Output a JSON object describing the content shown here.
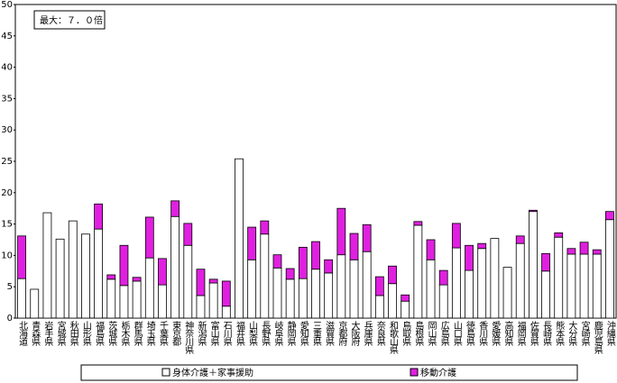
{
  "chart_data": {
    "type": "stacked-bar",
    "annotation": "最大：７．０倍",
    "categories": [
      "北海道",
      "青森県",
      "岩手県",
      "宮城県",
      "秋田県",
      "山形県",
      "福島県",
      "茨城県",
      "栃木県",
      "群馬県",
      "埼玉県",
      "千葉県",
      "東京都",
      "神奈川県",
      "新潟県",
      "富山県",
      "石川県",
      "福井県",
      "山梨県",
      "長野県",
      "岐阜県",
      "静岡県",
      "愛知県",
      "三重県",
      "滋賀県",
      "京都府",
      "大阪府",
      "兵庫県",
      "奈良県",
      "和歌山県",
      "鳥取県",
      "島根県",
      "岡山県",
      "広島県",
      "山口県",
      "徳島県",
      "香川県",
      "愛媛県",
      "高知県",
      "福岡県",
      "佐賀県",
      "長崎県",
      "熊本県",
      "大分県",
      "宮崎県",
      "鹿児島県",
      "沖縄県"
    ],
    "series": [
      {
        "name": "身体介護＋家事援助",
        "color": "#ffffff",
        "values": [
          6.3,
          4.6,
          16.8,
          12.6,
          15.5,
          13.4,
          14.2,
          6.2,
          5.2,
          5.9,
          9.6,
          5.3,
          16.2,
          11.6,
          3.6,
          5.6,
          1.9,
          25.4,
          9.3,
          13.4,
          8.0,
          6.2,
          6.3,
          7.8,
          7.2,
          10.1,
          9.3,
          10.6,
          3.6,
          5.5,
          2.7,
          14.8,
          9.3,
          5.3,
          11.2,
          7.6,
          11.1,
          12.7,
          8.1,
          11.9,
          17.0,
          7.5,
          12.9,
          10.2,
          10.2,
          10.2,
          15.7
        ]
      },
      {
        "name": "移動介護",
        "color": "#e020e0",
        "values": [
          6.8,
          0,
          0,
          0,
          0,
          0,
          4.0,
          0.7,
          6.4,
          0.6,
          6.5,
          4.2,
          2.5,
          3.5,
          4.2,
          0.6,
          4.0,
          0,
          5.2,
          2.1,
          2.1,
          1.7,
          5.0,
          4.4,
          2.1,
          7.4,
          4.2,
          4.3,
          3.0,
          2.8,
          1.0,
          0.6,
          3.2,
          2.3,
          3.9,
          4.0,
          0.8,
          0,
          0,
          1.2,
          0.2,
          2.8,
          0.7,
          0.9,
          1.9,
          0.7,
          1.3
        ]
      }
    ],
    "ylim": [
      0,
      50
    ],
    "yticks": [
      0,
      5,
      10,
      15,
      20,
      25,
      30,
      35,
      40,
      45,
      50
    ],
    "legend": "bottom"
  }
}
